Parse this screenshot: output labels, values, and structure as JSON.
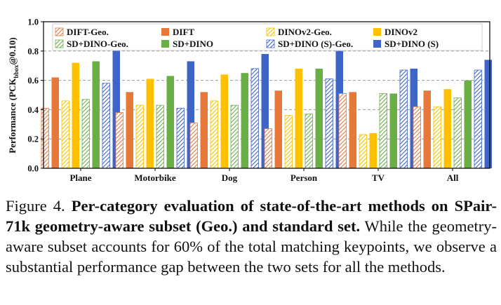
{
  "chart_data": {
    "type": "bar",
    "ylabel_main": "Performance (PCK",
    "ylabel_sub": "bbox",
    "ylabel_tail": "@0.10)",
    "ylim": [
      0,
      1.0
    ],
    "yticks": [
      "0.0",
      "0.2",
      "0.4",
      "0.6",
      "0.8",
      "1.0"
    ],
    "grid": "horizontal dashed",
    "legend_position": "top",
    "categories": [
      "Plane",
      "Motorbike",
      "Dog",
      "Person",
      "TV",
      "All"
    ],
    "series": [
      {
        "name": "DIFT-Geo.",
        "color": "#E8773A",
        "hatched": true,
        "values": [
          0.41,
          0.38,
          0.31,
          0.27,
          0.51,
          0.42
        ]
      },
      {
        "name": "DIFT",
        "color": "#E8773A",
        "hatched": false,
        "values": [
          0.62,
          0.52,
          0.52,
          0.53,
          0.52,
          0.53
        ]
      },
      {
        "name": "DINOv2-Geo.",
        "color": "#F2C200",
        "hatched": true,
        "values": [
          0.46,
          0.43,
          0.46,
          0.36,
          0.23,
          0.42
        ]
      },
      {
        "name": "DINOv2",
        "color": "#FFC000",
        "hatched": false,
        "values": [
          0.72,
          0.61,
          0.64,
          0.68,
          0.24,
          0.54
        ]
      },
      {
        "name": "SD+DINO-Geo.",
        "color": "#6AAF45",
        "hatched": true,
        "values": [
          0.47,
          0.43,
          0.43,
          0.37,
          0.51,
          0.48
        ]
      },
      {
        "name": "SD+DINO",
        "color": "#6AAF45",
        "hatched": false,
        "values": [
          0.73,
          0.63,
          0.65,
          0.68,
          0.51,
          0.6
        ]
      },
      {
        "name": "SD+DINO (S)-Geo.",
        "color": "#3F64C8",
        "hatched": true,
        "values": [
          0.58,
          0.41,
          0.68,
          0.61,
          0.67,
          0.67
        ]
      },
      {
        "name": "SD+DINO (S)",
        "color": "#3F64C8",
        "hatched": false,
        "values": [
          0.81,
          0.73,
          0.78,
          0.8,
          0.68,
          0.74
        ]
      }
    ]
  },
  "caption": {
    "label": "Figure 4.",
    "title": "Per-category evaluation of state-of-the-art methods on SPair-71k geometry-aware subset (Geo.) and standard set.",
    "body": "While the geometry-aware subset accounts for 60% of the total matching keypoints, we observe a substantial performance gap between the two sets for all the methods."
  }
}
